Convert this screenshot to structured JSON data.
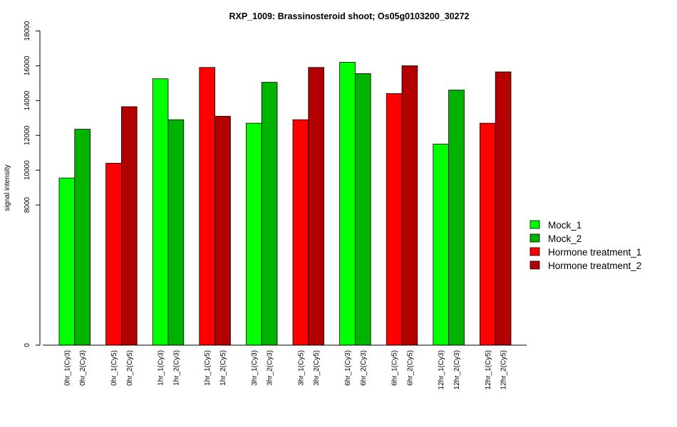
{
  "chart_data": {
    "type": "bar",
    "title": "RXP_1009: Brassinosteroid shoot; Os05g0103200_30272",
    "xlabel": "",
    "ylabel": "signal intensity",
    "y_axis": {
      "break_at": 8000,
      "below_break_ticks": [
        0
      ],
      "above_break_ticks": [
        8000,
        10000,
        12000,
        14000,
        16000,
        18000
      ],
      "ylim_above_break": [
        8000,
        18000
      ]
    },
    "categories": [
      "0hr_1(Cy3)",
      "0hr_2(Cy3)",
      "0hr_1(Cy5)",
      "0hr_2(Cy5)",
      "1hr_1(Cy3)",
      "1hr_2(Cy3)",
      "1hr_1(Cy5)",
      "1hr_2(Cy5)",
      "3hr_1(Cy3)",
      "3hr_2(Cy3)",
      "3hr_1(Cy5)",
      "3hr_2(Cy5)",
      "6hr_1(Cy3)",
      "6hr_2(Cy3)",
      "6hr_1(Cy5)",
      "6hr_2(Cy5)",
      "12hr_1(Cy3)",
      "12hr_2(Cy3)",
      "12hr_1(Cy5)",
      "12hr_2(Cy5)"
    ],
    "values": [
      9550,
      12350,
      10400,
      13650,
      15250,
      12900,
      15900,
      13100,
      12700,
      15050,
      12900,
      15900,
      16200,
      15550,
      14400,
      16000,
      11500,
      14600,
      12700,
      15650
    ],
    "bar_series": [
      "Mock_1",
      "Mock_2",
      "Hormone treatment_1",
      "Hormone treatment_2",
      "Mock_1",
      "Mock_2",
      "Hormone treatment_1",
      "Hormone treatment_2",
      "Mock_1",
      "Mock_2",
      "Hormone treatment_1",
      "Hormone treatment_2",
      "Mock_1",
      "Mock_2",
      "Hormone treatment_1",
      "Hormone treatment_2",
      "Mock_1",
      "Mock_2",
      "Hormone treatment_1",
      "Hormone treatment_2"
    ],
    "legend": {
      "placement": "right",
      "entries": [
        {
          "name": "Mock_1",
          "color": "#00ff00"
        },
        {
          "name": "Mock_2",
          "color": "#00b300"
        },
        {
          "name": "Hormone treatment_1",
          "color": "#ff0000"
        },
        {
          "name": "Hormone treatment_2",
          "color": "#b30000"
        }
      ]
    },
    "grid": false
  }
}
